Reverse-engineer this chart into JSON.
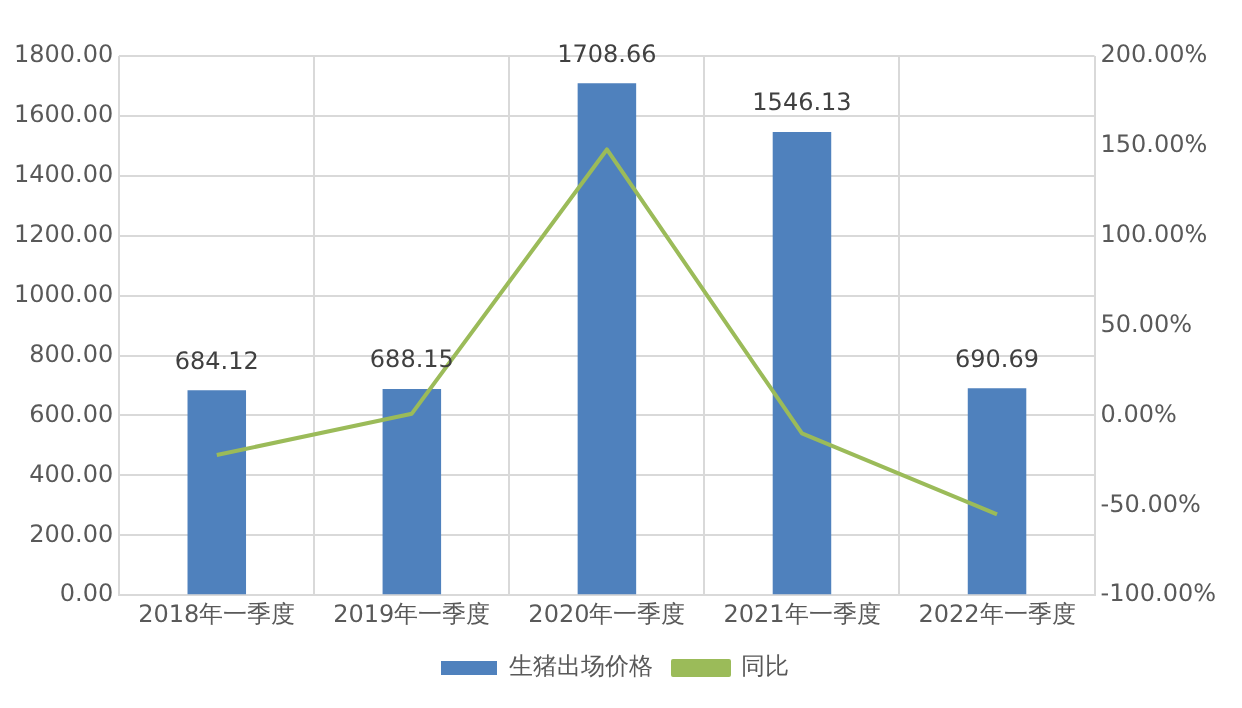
{
  "chart_data": {
    "type": "bar",
    "categories": [
      "2018年一季度",
      "2019年一季度",
      "2020年一季度",
      "2021年一季度",
      "2022年一季度"
    ],
    "series": [
      {
        "name": "生猪出场价格",
        "color": "#4f81bd",
        "values": [
          684.12,
          688.15,
          1708.66,
          1546.13,
          690.69
        ],
        "value_labels": [
          "684.12",
          "688.15",
          "1708.66",
          "1546.13",
          "690.69"
        ]
      },
      {
        "name": "同比",
        "type": "line",
        "axis": "y2",
        "color": "#9bbb59",
        "values": [
          -22,
          1,
          148,
          -10,
          -55
        ]
      }
    ],
    "ylim": [
      0,
      1800
    ],
    "yticks": [
      {
        "value": 0,
        "label": "0.00"
      },
      {
        "value": 200,
        "label": "200.00"
      },
      {
        "value": 400,
        "label": "400.00"
      },
      {
        "value": 600,
        "label": "600.00"
      },
      {
        "value": 800,
        "label": "800.00"
      },
      {
        "value": 1000,
        "label": "1000.00"
      },
      {
        "value": 1200,
        "label": "1200.00"
      },
      {
        "value": 1400,
        "label": "1400.00"
      },
      {
        "value": 1600,
        "label": "1600.00"
      },
      {
        "value": 1800,
        "label": "1800.00"
      }
    ],
    "y2lim": [
      -100,
      200
    ],
    "y2ticks": [
      {
        "value": -100,
        "label": "-100.00%"
      },
      {
        "value": -50,
        "label": "-50.00%"
      },
      {
        "value": 0,
        "label": "0.00%"
      },
      {
        "value": 50,
        "label": "50.00%"
      },
      {
        "value": 100,
        "label": "100.00%"
      },
      {
        "value": 150,
        "label": "150.00%"
      },
      {
        "value": 200,
        "label": "200.00%"
      }
    ],
    "grid": true,
    "legend": "bottom",
    "marker": "none",
    "line_style": "solid"
  }
}
